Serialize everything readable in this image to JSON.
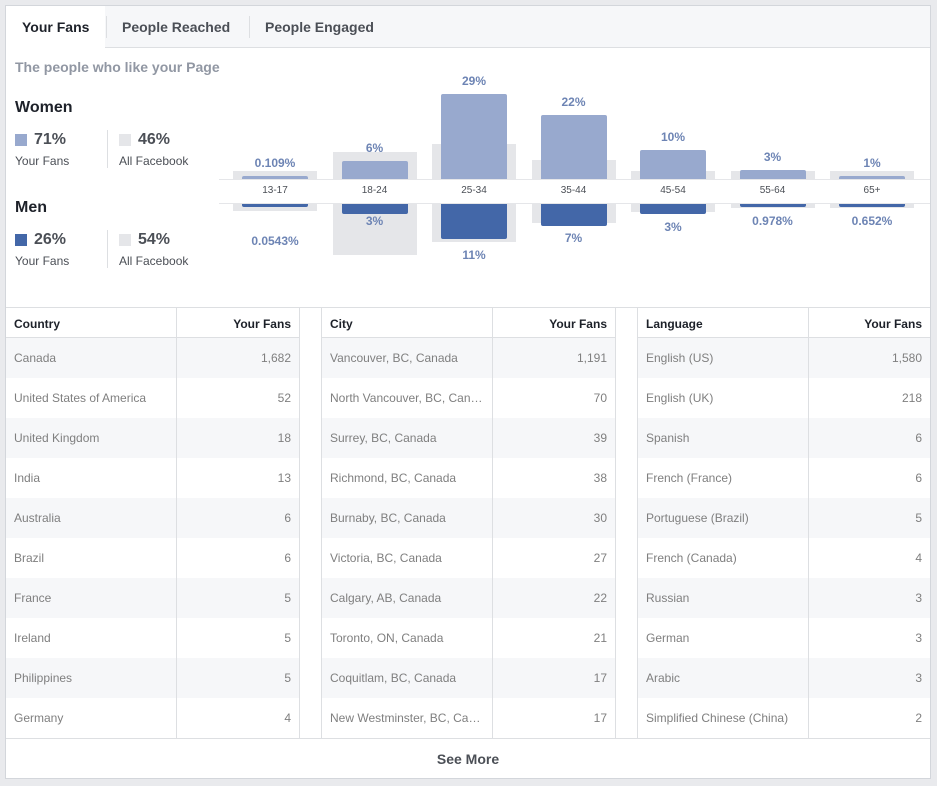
{
  "tabs": [
    {
      "label": "Your Fans"
    },
    {
      "label": "People Reached"
    },
    {
      "label": "People Engaged"
    }
  ],
  "subtitle": "The people who like your Page",
  "women": {
    "title": "Women",
    "fans_pct": "71%",
    "fans_label": "Your Fans",
    "all_pct": "46%",
    "all_label": "All Facebook",
    "color": "#98a9ce"
  },
  "men": {
    "title": "Men",
    "fans_pct": "26%",
    "fans_label": "Your Fans",
    "all_pct": "54%",
    "all_label": "All Facebook",
    "color": "#4367a8"
  },
  "chart_data": {
    "type": "bar",
    "categories": [
      "13-17",
      "18-24",
      "25-34",
      "35-44",
      "45-54",
      "55-64",
      "65+"
    ],
    "series": [
      {
        "values": [
          0.109,
          6,
          29,
          22,
          10,
          3,
          1
        ],
        "labels": [
          "0.109%",
          "6%",
          "29%",
          "22%",
          "10%",
          "3%",
          "1%"
        ],
        "color": "#98a9ce"
      },
      {
        "values": [
          0.0543,
          3,
          11,
          7,
          3,
          0.978,
          0.652
        ],
        "labels": [
          "0.0543%",
          "3%",
          "11%",
          "7%",
          "3%",
          "0.978%",
          "0.652%"
        ],
        "color": "#4367a8"
      }
    ],
    "background_women": [
      2.5,
      10,
      13,
      7,
      3,
      1.3,
      0.8
    ],
    "background_men": [
      2.5,
      19,
      14,
      7,
      3,
      1,
      0.5
    ],
    "background_color": "#e5e6e9"
  },
  "tables": [
    {
      "col1": "Country",
      "col2": "Your Fans",
      "rows": [
        [
          "Canada",
          "1,682"
        ],
        [
          "United States of America",
          "52"
        ],
        [
          "United Kingdom",
          "18"
        ],
        [
          "India",
          "13"
        ],
        [
          "Australia",
          "6"
        ],
        [
          "Brazil",
          "6"
        ],
        [
          "France",
          "5"
        ],
        [
          "Ireland",
          "5"
        ],
        [
          "Philippines",
          "5"
        ],
        [
          "Germany",
          "4"
        ]
      ]
    },
    {
      "col1": "City",
      "col2": "Your Fans",
      "rows": [
        [
          "Vancouver, BC, Canada",
          "1,191"
        ],
        [
          "North Vancouver, BC, Can…",
          "70"
        ],
        [
          "Surrey, BC, Canada",
          "39"
        ],
        [
          "Richmond, BC, Canada",
          "38"
        ],
        [
          "Burnaby, BC, Canada",
          "30"
        ],
        [
          "Victoria, BC, Canada",
          "27"
        ],
        [
          "Calgary, AB, Canada",
          "22"
        ],
        [
          "Toronto, ON, Canada",
          "21"
        ],
        [
          "Coquitlam, BC, Canada",
          "17"
        ],
        [
          "New Westminster, BC, Ca…",
          "17"
        ]
      ]
    },
    {
      "col1": "Language",
      "col2": "Your Fans",
      "rows": [
        [
          "English (US)",
          "1,580"
        ],
        [
          "English (UK)",
          "218"
        ],
        [
          "Spanish",
          "6"
        ],
        [
          "French (France)",
          "6"
        ],
        [
          "Portuguese (Brazil)",
          "5"
        ],
        [
          "French (Canada)",
          "4"
        ],
        [
          "Russian",
          "3"
        ],
        [
          "German",
          "3"
        ],
        [
          "Arabic",
          "3"
        ],
        [
          "Simplified Chinese (China)",
          "2"
        ]
      ]
    }
  ],
  "see_more": "See More"
}
